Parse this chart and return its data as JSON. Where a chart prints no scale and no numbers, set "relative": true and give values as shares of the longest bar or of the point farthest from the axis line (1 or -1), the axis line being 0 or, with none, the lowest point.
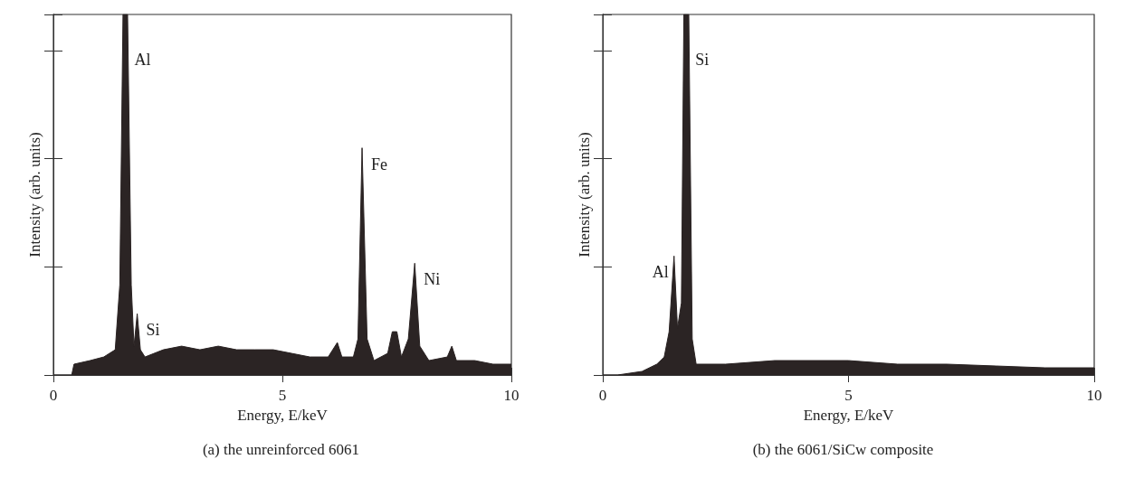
{
  "chart_data": [
    {
      "type": "area",
      "title": "(a) the unreinforced 6061",
      "xlabel": "Energy, E/keV",
      "ylabel": "Intensity (arb. units)",
      "relative": true,
      "xlim": [
        0,
        10
      ],
      "xticks": [
        0,
        5,
        10
      ],
      "series": [
        {
          "color": "#2b2424",
          "x": [
            0,
            0.4,
            0.45,
            0.8,
            1.1,
            1.35,
            1.45,
            1.52,
            1.62,
            1.7,
            1.76,
            1.83,
            1.9,
            2.0,
            2.4,
            2.8,
            3.2,
            3.6,
            4.0,
            4.4,
            4.8,
            5.2,
            5.6,
            6.0,
            6.1,
            6.2,
            6.3,
            6.55,
            6.65,
            6.74,
            6.85,
            7.0,
            7.3,
            7.4,
            7.5,
            7.6,
            7.75,
            7.89,
            8.0,
            8.2,
            8.6,
            8.7,
            8.8,
            9.2,
            9.6,
            10
          ],
          "values": [
            0,
            0,
            0.03,
            0.04,
            0.05,
            0.07,
            0.25,
            1,
            1,
            0.25,
            0.08,
            0.17,
            0.07,
            0.05,
            0.07,
            0.08,
            0.07,
            0.08,
            0.07,
            0.07,
            0.07,
            0.06,
            0.05,
            0.05,
            0.07,
            0.09,
            0.05,
            0.05,
            0.1,
            0.63,
            0.1,
            0.04,
            0.06,
            0.12,
            0.12,
            0.05,
            0.1,
            0.31,
            0.08,
            0.04,
            0.05,
            0.08,
            0.04,
            0.04,
            0.03,
            0.03
          ]
        }
      ],
      "annotations": [
        {
          "text": "Al",
          "x": 1.57,
          "y": 1
        },
        {
          "text": "Si",
          "x": 1.83,
          "y": 0.17
        },
        {
          "text": "Fe",
          "x": 6.74,
          "y": 0.63
        },
        {
          "text": "Ni",
          "x": 7.89,
          "y": 0.31
        }
      ]
    },
    {
      "type": "area",
      "title": "(b) the 6061/SiCw composite",
      "xlabel": "Energy, E/keV",
      "ylabel": "Intensity (arb. units)",
      "relative": true,
      "xlim": [
        0,
        10
      ],
      "xticks": [
        0,
        5,
        10
      ],
      "series": [
        {
          "color": "#2b2424",
          "x": [
            0,
            0.3,
            0.8,
            1.1,
            1.25,
            1.35,
            1.45,
            1.52,
            1.6,
            1.65,
            1.75,
            1.82,
            1.9,
            2.5,
            3.5,
            5,
            6,
            7,
            8,
            9,
            10
          ],
          "values": [
            0,
            0,
            0.01,
            0.03,
            0.05,
            0.12,
            0.33,
            0.13,
            0.2,
            1,
            1,
            0.1,
            0.03,
            0.03,
            0.04,
            0.04,
            0.03,
            0.03,
            0.025,
            0.02,
            0.02
          ]
        }
      ],
      "annotations": [
        {
          "text": "Al",
          "x": 1.45,
          "y": 0.33
        },
        {
          "text": "Si",
          "x": 1.7,
          "y": 1
        }
      ]
    }
  ]
}
